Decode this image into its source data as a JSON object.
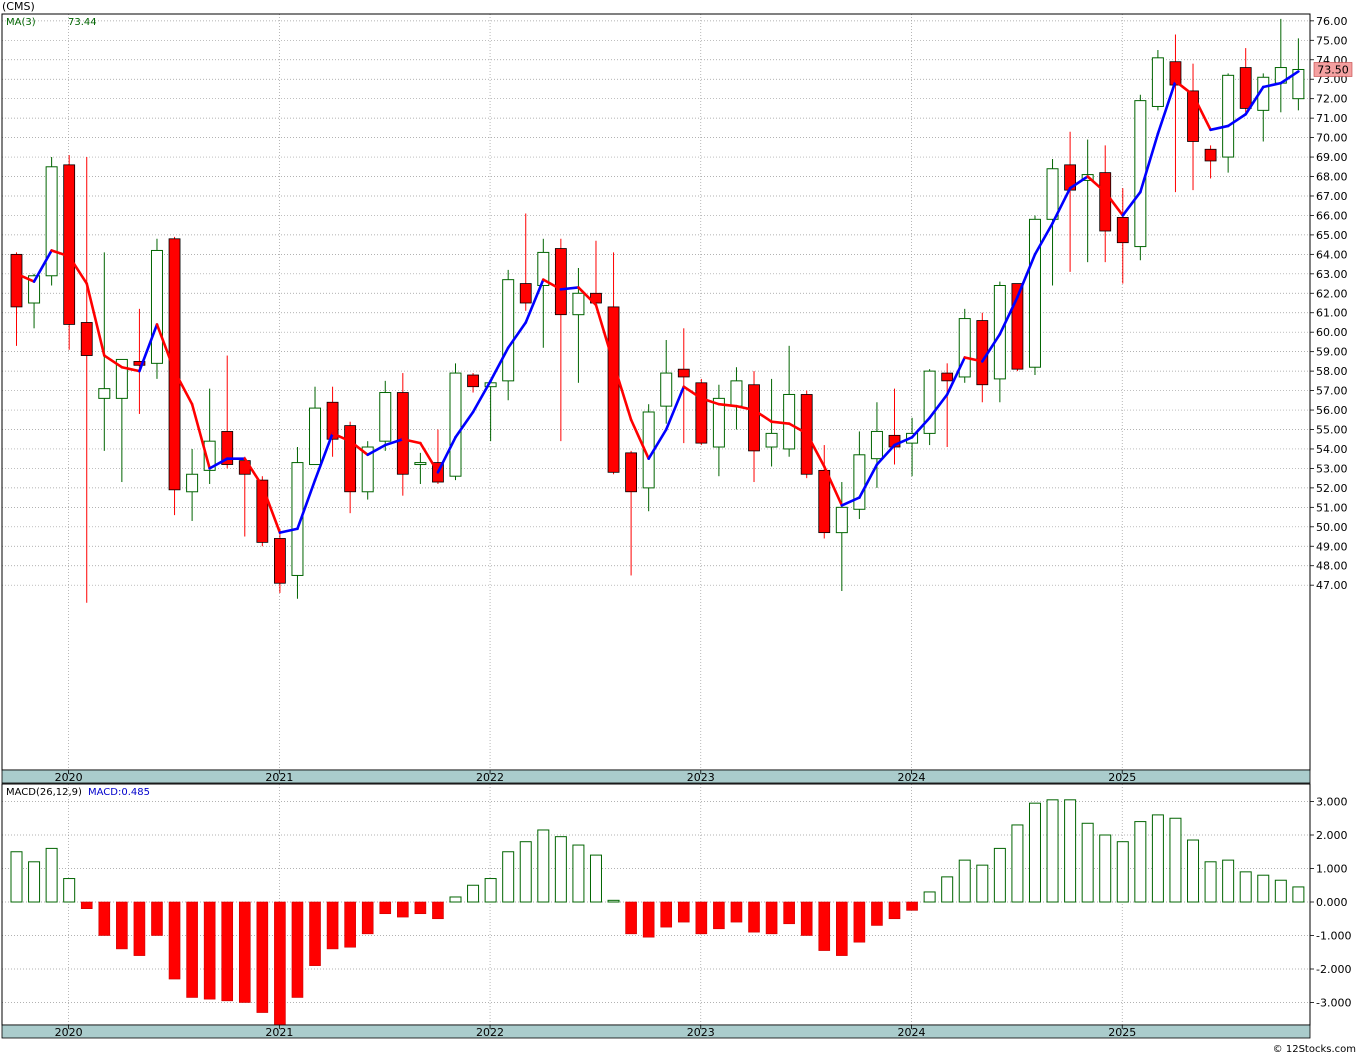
{
  "header": {
    "symbol": "(CMS)",
    "ma_label": "MA(3)",
    "ma_value": "73.44",
    "last_price": "73.50"
  },
  "macd": {
    "label": "MACD(26,12,9)",
    "value_label": "MACD:0.485"
  },
  "footer": {
    "credit": "© 12Stocks.com"
  },
  "colors": {
    "up": "#006400",
    "down": "#ff0000",
    "ma_up": "#0000ff",
    "ma_down": "#ff0000",
    "price_tag": "#f4a0a0"
  },
  "chart_data": [
    {
      "type": "candlestick",
      "title": "(CMS)",
      "ylim": [
        46,
        76.7
      ],
      "y_ticks": [
        "47.00",
        "48.00",
        "49.00",
        "50.00",
        "51.00",
        "52.00",
        "53.00",
        "54.00",
        "55.00",
        "56.00",
        "57.00",
        "58.00",
        "59.00",
        "60.00",
        "61.00",
        "62.00",
        "63.00",
        "64.00",
        "65.00",
        "66.00",
        "67.00",
        "68.00",
        "69.00",
        "70.00",
        "71.00",
        "72.00",
        "73.00",
        "74.00",
        "75.00",
        "76.00"
      ],
      "x_tick_labels": [
        "2020",
        "2021",
        "2022",
        "2023",
        "2024",
        "2025"
      ],
      "x_tick_bar_index": [
        2,
        14,
        26,
        38,
        50,
        62
      ],
      "grid": true,
      "candles": [
        {
          "o": 64.0,
          "h": 64.1,
          "l": 59.3,
          "c": 61.3
        },
        {
          "o": 61.5,
          "h": 63.0,
          "l": 60.2,
          "c": 62.9
        },
        {
          "o": 62.9,
          "h": 69.0,
          "l": 62.4,
          "c": 68.5
        },
        {
          "o": 68.6,
          "h": 69.1,
          "l": 59.1,
          "c": 60.4
        },
        {
          "o": 60.5,
          "h": 69.0,
          "l": 46.1,
          "c": 58.8
        },
        {
          "o": 56.6,
          "h": 64.1,
          "l": 53.9,
          "c": 57.1
        },
        {
          "o": 56.6,
          "h": 58.6,
          "l": 52.3,
          "c": 58.6
        },
        {
          "o": 58.5,
          "h": 61.2,
          "l": 55.8,
          "c": 58.3
        },
        {
          "o": 58.4,
          "h": 64.8,
          "l": 57.6,
          "c": 64.2
        },
        {
          "o": 64.8,
          "h": 64.9,
          "l": 50.6,
          "c": 51.9
        },
        {
          "o": 51.8,
          "h": 54.0,
          "l": 50.3,
          "c": 52.7
        },
        {
          "o": 52.9,
          "h": 57.1,
          "l": 52.2,
          "c": 54.4
        },
        {
          "o": 54.9,
          "h": 58.8,
          "l": 53.0,
          "c": 53.2
        },
        {
          "o": 53.4,
          "h": 53.6,
          "l": 49.5,
          "c": 52.7
        },
        {
          "o": 52.4,
          "h": 52.6,
          "l": 49.0,
          "c": 49.2
        },
        {
          "o": 49.4,
          "h": 49.9,
          "l": 46.6,
          "c": 47.1
        },
        {
          "o": 47.5,
          "h": 54.1,
          "l": 46.3,
          "c": 53.3
        },
        {
          "o": 53.2,
          "h": 57.2,
          "l": 53.2,
          "c": 56.1
        },
        {
          "o": 56.4,
          "h": 57.2,
          "l": 53.6,
          "c": 54.5
        },
        {
          "o": 55.2,
          "h": 55.4,
          "l": 50.7,
          "c": 51.8
        },
        {
          "o": 51.8,
          "h": 54.4,
          "l": 51.4,
          "c": 54.1
        },
        {
          "o": 54.4,
          "h": 57.5,
          "l": 53.9,
          "c": 56.9
        },
        {
          "o": 56.9,
          "h": 57.9,
          "l": 51.6,
          "c": 52.7
        },
        {
          "o": 53.2,
          "h": 53.8,
          "l": 52.2,
          "c": 53.3
        },
        {
          "o": 53.3,
          "h": 55.0,
          "l": 52.2,
          "c": 52.3
        },
        {
          "o": 52.6,
          "h": 58.4,
          "l": 52.4,
          "c": 57.9
        },
        {
          "o": 57.8,
          "h": 57.9,
          "l": 56.9,
          "c": 57.2
        },
        {
          "o": 57.2,
          "h": 57.4,
          "l": 54.4,
          "c": 57.4
        },
        {
          "o": 57.5,
          "h": 63.2,
          "l": 56.5,
          "c": 62.7
        },
        {
          "o": 62.5,
          "h": 66.1,
          "l": 61.1,
          "c": 61.5
        },
        {
          "o": 62.4,
          "h": 64.8,
          "l": 59.2,
          "c": 64.1
        },
        {
          "o": 64.3,
          "h": 64.8,
          "l": 54.4,
          "c": 60.9
        },
        {
          "o": 60.9,
          "h": 63.3,
          "l": 57.4,
          "c": 62.0
        },
        {
          "o": 62.0,
          "h": 64.7,
          "l": 61.3,
          "c": 61.5
        },
        {
          "o": 61.3,
          "h": 64.1,
          "l": 52.7,
          "c": 52.8
        },
        {
          "o": 53.8,
          "h": 53.9,
          "l": 47.5,
          "c": 51.8
        },
        {
          "o": 52.0,
          "h": 56.3,
          "l": 50.8,
          "c": 55.9
        },
        {
          "o": 56.2,
          "h": 59.6,
          "l": 55.3,
          "c": 57.9
        },
        {
          "o": 58.1,
          "h": 60.2,
          "l": 54.3,
          "c": 57.7
        },
        {
          "o": 57.4,
          "h": 57.6,
          "l": 54.2,
          "c": 54.3
        },
        {
          "o": 54.1,
          "h": 57.3,
          "l": 52.6,
          "c": 56.6
        },
        {
          "o": 56.2,
          "h": 58.2,
          "l": 55.0,
          "c": 57.5
        },
        {
          "o": 57.3,
          "h": 58.0,
          "l": 52.3,
          "c": 53.9
        },
        {
          "o": 54.1,
          "h": 57.6,
          "l": 53.1,
          "c": 54.8
        },
        {
          "o": 54.0,
          "h": 59.3,
          "l": 53.6,
          "c": 56.8
        },
        {
          "o": 56.8,
          "h": 57.0,
          "l": 52.5,
          "c": 52.7
        },
        {
          "o": 52.9,
          "h": 54.2,
          "l": 49.4,
          "c": 49.7
        },
        {
          "o": 49.7,
          "h": 52.3,
          "l": 46.7,
          "c": 51.0
        },
        {
          "o": 50.9,
          "h": 54.9,
          "l": 50.4,
          "c": 53.7
        },
        {
          "o": 53.5,
          "h": 56.4,
          "l": 52.0,
          "c": 54.9
        },
        {
          "o": 54.7,
          "h": 57.1,
          "l": 53.2,
          "c": 54.1
        },
        {
          "o": 54.3,
          "h": 55.6,
          "l": 52.6,
          "c": 54.8
        },
        {
          "o": 54.8,
          "h": 58.1,
          "l": 54.2,
          "c": 58.0
        },
        {
          "o": 57.9,
          "h": 58.4,
          "l": 54.1,
          "c": 57.5
        },
        {
          "o": 57.7,
          "h": 61.2,
          "l": 57.4,
          "c": 60.7
        },
        {
          "o": 60.6,
          "h": 61.0,
          "l": 56.4,
          "c": 57.3
        },
        {
          "o": 57.6,
          "h": 62.6,
          "l": 56.4,
          "c": 62.4
        },
        {
          "o": 62.5,
          "h": 62.5,
          "l": 58.0,
          "c": 58.1
        },
        {
          "o": 58.2,
          "h": 66.0,
          "l": 57.8,
          "c": 65.8
        },
        {
          "o": 65.8,
          "h": 68.9,
          "l": 62.4,
          "c": 68.4
        },
        {
          "o": 68.6,
          "h": 70.3,
          "l": 63.1,
          "c": 67.3
        },
        {
          "o": 67.8,
          "h": 69.9,
          "l": 63.6,
          "c": 68.1
        },
        {
          "o": 68.2,
          "h": 69.6,
          "l": 63.6,
          "c": 65.2
        },
        {
          "o": 65.9,
          "h": 67.4,
          "l": 62.5,
          "c": 64.6
        },
        {
          "o": 64.4,
          "h": 72.2,
          "l": 63.7,
          "c": 71.9
        },
        {
          "o": 71.6,
          "h": 74.5,
          "l": 71.4,
          "c": 74.1
        },
        {
          "o": 73.9,
          "h": 75.3,
          "l": 67.2,
          "c": 72.7
        },
        {
          "o": 72.4,
          "h": 73.8,
          "l": 67.3,
          "c": 69.8
        },
        {
          "o": 69.4,
          "h": 69.6,
          "l": 67.9,
          "c": 68.8
        },
        {
          "o": 69.0,
          "h": 73.3,
          "l": 68.2,
          "c": 73.2
        },
        {
          "o": 73.6,
          "h": 74.6,
          "l": 71.3,
          "c": 71.5
        },
        {
          "o": 71.4,
          "h": 73.3,
          "l": 69.8,
          "c": 73.1
        },
        {
          "o": 72.8,
          "h": 76.1,
          "l": 71.3,
          "c": 73.6
        },
        {
          "o": 72.0,
          "h": 75.1,
          "l": 71.4,
          "c": 73.5
        }
      ],
      "ma": [
        63.0,
        62.6,
        64.2,
        63.9,
        62.5,
        58.8,
        58.2,
        58.0,
        60.4,
        58.0,
        56.3,
        53.0,
        53.5,
        53.5,
        52.1,
        49.7,
        49.9,
        52.4,
        54.8,
        54.4,
        53.7,
        54.2,
        54.5,
        54.3,
        52.8,
        54.6,
        55.9,
        57.5,
        59.2,
        60.5,
        62.7,
        62.2,
        62.3,
        61.4,
        58.4,
        55.5,
        53.5,
        55.0,
        57.2,
        56.6,
        56.3,
        56.2,
        56.0,
        55.4,
        55.3,
        54.8,
        53.1,
        51.1,
        51.5,
        53.2,
        54.2,
        54.6,
        55.6,
        56.8,
        58.7,
        58.5,
        59.9,
        61.8,
        64.0,
        65.6,
        67.4,
        68.0,
        67.2,
        66.0,
        67.2,
        70.2,
        72.9,
        72.2,
        70.4,
        70.6,
        71.2,
        72.6,
        72.8,
        73.4
      ]
    },
    {
      "type": "bar",
      "title": "MACD(26,12,9)",
      "ylim": [
        -3.65,
        3.3
      ],
      "y_ticks": [
        "3.000",
        "2.000",
        "1.000",
        "0.000",
        "-1.000",
        "-2.000",
        "-3.000"
      ],
      "values": [
        1.5,
        1.2,
        1.6,
        0.7,
        -0.2,
        -1.0,
        -1.4,
        -1.6,
        -1.0,
        -2.3,
        -2.85,
        -2.9,
        -2.95,
        -3.0,
        -3.3,
        -3.7,
        -2.85,
        -1.9,
        -1.4,
        -1.35,
        -0.95,
        -0.35,
        -0.45,
        -0.35,
        -0.5,
        0.15,
        0.5,
        0.7,
        1.5,
        1.8,
        2.15,
        1.95,
        1.7,
        1.4,
        0.05,
        -0.95,
        -1.05,
        -0.75,
        -0.6,
        -0.95,
        -0.8,
        -0.6,
        -0.9,
        -0.95,
        -0.65,
        -1.0,
        -1.45,
        -1.6,
        -1.2,
        -0.7,
        -0.5,
        -0.25,
        0.3,
        0.75,
        1.25,
        1.1,
        1.6,
        2.3,
        2.95,
        3.05,
        3.05,
        2.35,
        2.0,
        1.8,
        2.4,
        2.6,
        2.5,
        1.85,
        1.2,
        1.25,
        0.9,
        0.8,
        0.65,
        0.45
      ]
    }
  ]
}
